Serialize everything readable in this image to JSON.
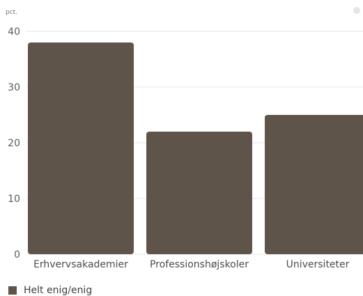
{
  "chart_data": {
    "type": "bar",
    "title": "",
    "xlabel": "",
    "ylabel": "pct.",
    "ylim": [
      0,
      40
    ],
    "y_ticks": [
      0,
      10,
      20,
      30,
      40
    ],
    "grid": true,
    "legend_placement": "bottom-left",
    "categories": [
      "Erhvervsakademier",
      "Professionshøjskoler",
      "Universiteter"
    ],
    "series": [
      {
        "name": "Helt enig/enig",
        "values": [
          38,
          22,
          25
        ]
      }
    ],
    "colors": {
      "bar": "#5f5449",
      "grid": "#e6e6e6",
      "axis_text": "#5a5a5a"
    }
  }
}
